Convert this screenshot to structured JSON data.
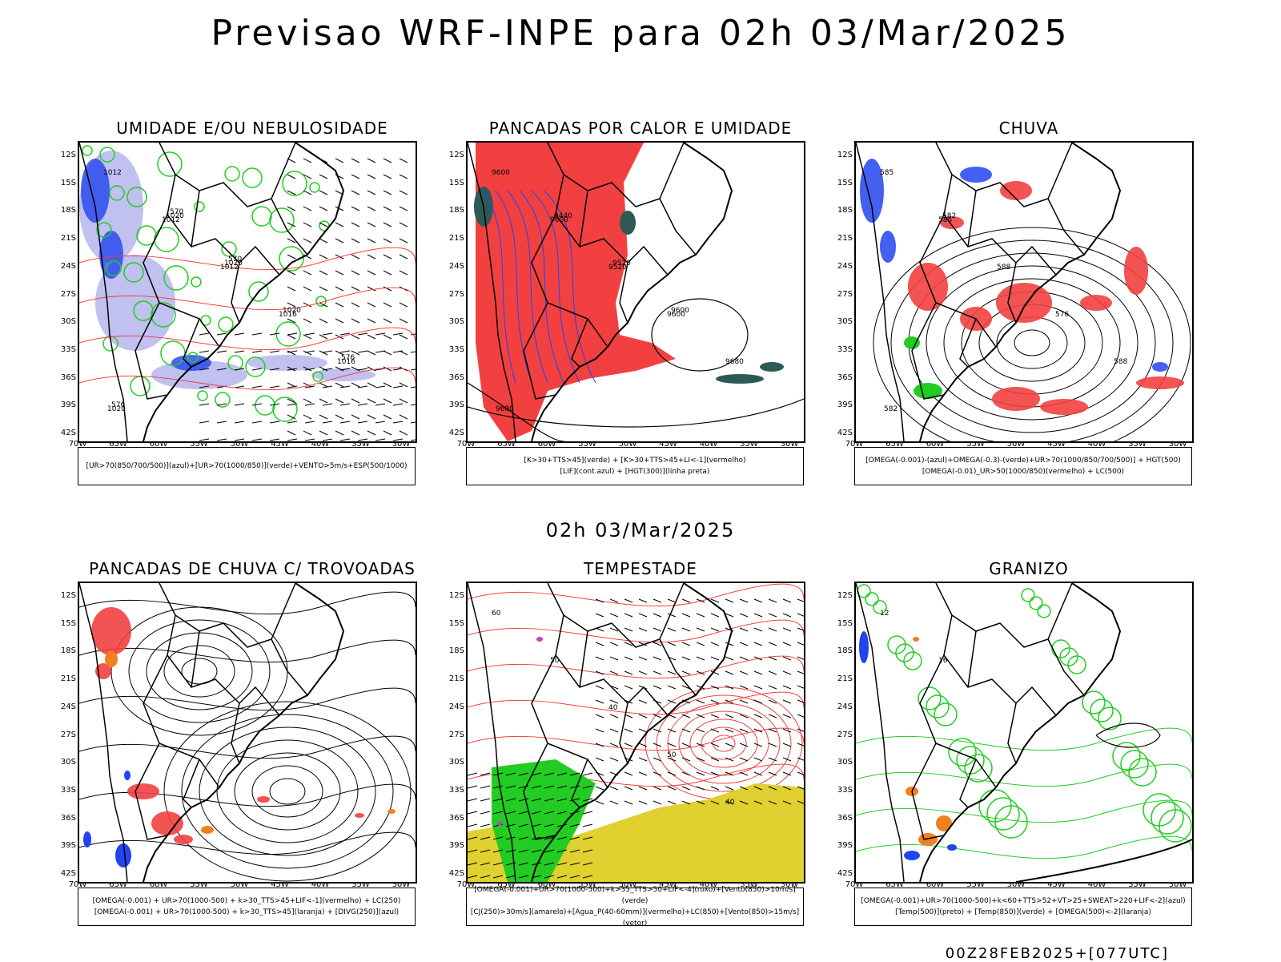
{
  "main_title": "Previsao WRF-INPE  para 02h 03/Mar/2025",
  "mid_title": "02h 03/Mar/2025",
  "footer": "00Z28FEB2025+[077UTC]",
  "axes": {
    "lat_labels": [
      "12S",
      "15S",
      "18S",
      "21S",
      "24S",
      "27S",
      "30S",
      "33S",
      "36S",
      "39S",
      "42S"
    ],
    "lon_labels": [
      "70W",
      "65W",
      "60W",
      "55W",
      "50W",
      "45W",
      "40W",
      "35W",
      "30W"
    ]
  },
  "panels": [
    {
      "title": "UMIDADE E/OU NEBULOSIDADE",
      "legend": [
        "[UR>70(850/700/500)](azul)+[UR>70(1000/850)](verde)+VENTO>5m/s+ESP(500/1000)"
      ],
      "contour_labels": [
        "1012",
        "1012",
        "1012",
        "1016",
        "1016",
        "1020",
        "1020",
        "1020",
        "1020",
        "576",
        "576",
        "570",
        "570"
      ]
    },
    {
      "title": "PANCADAS POR CALOR E UMIDADE",
      "legend": [
        "[K>30+TTS>45](verde) + [K>30+TTS>45+LI<-1](vermelho)",
        "[LIF](cont.azul) + [HGT(300)](linha preta)"
      ],
      "contour_labels": [
        "9600",
        "9600",
        "9520",
        "9600",
        "9680",
        "9680",
        "9440",
        "9520",
        "9600"
      ]
    },
    {
      "title": "CHUVA",
      "legend": [
        "[OMEGA(-0.001)-(azul)+OMEGA(-0.3)-(verde)+UR>70(1000/850/700/500)] + HGT(500)",
        "[OMEGA(-0.01)_UR>50(1000/850)(vermelho) + LC(500)"
      ],
      "contour_labels": [
        "585",
        "585",
        "588",
        "576",
        "588",
        "582",
        "582"
      ]
    },
    {
      "title": "PANCADAS DE CHUVA C/ TROVOADAS",
      "legend": [
        "[OMEGA(-0.001) + UR>70(1000-500) + k>30_TTS>45+LIF<-1](vermelho) + LC(250)",
        "[OMEGA(-0.001) + UR>70(1000-500) + k>30_TTS>45](laranja) + [DIVG(250)](azul)"
      ],
      "contour_labels": []
    },
    {
      "title": "TEMPESTADE",
      "legend": [
        "[OMEGA(-0.001)+UR>70(1000-500)+k>35_TTS>50+LIF<-4](roxo)+[Vento(850)>10m/s](verde)",
        "[CJ(250)>30m/s](amarelo)+[Agua_P(40-60mm)](vermelho)+LC(850)+[Vento(850)>15m/s](vetor)"
      ],
      "contour_labels": [
        "60",
        "50",
        "40",
        "50",
        "40"
      ]
    },
    {
      "title": "GRANIZO",
      "legend": [
        "[OMEGA(-0.001)+UR>70(1000-500)+k<60+TTS>52+VT>25+SWEAT>220+LIF<-2](azul)",
        "[Temp(500)](preto) + [Temp(850)](verde) + [OMEGA(500)<-2](laranja)"
      ],
      "contour_labels": [
        "12",
        "16"
      ]
    }
  ],
  "colors": {
    "red": "#f24040",
    "green": "#22cc22",
    "blue": "#2244ee",
    "lightblue": "#b9b9f0",
    "darkteal": "#2e5a55",
    "yellow": "#e0d030",
    "orange": "#f08020",
    "magenta": "#c040c0",
    "black": "#000000"
  }
}
